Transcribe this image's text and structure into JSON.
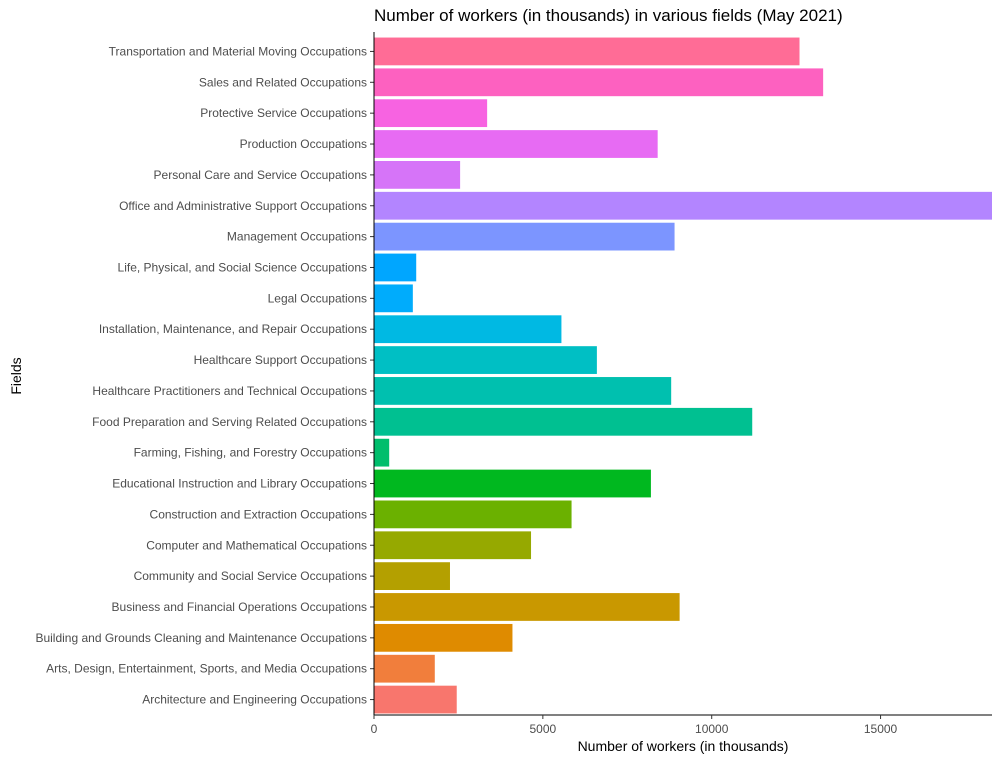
{
  "chart_data": {
    "type": "bar",
    "orientation": "horizontal",
    "title": "Number of workers (in thousands) in various fields (May 2021)",
    "xlabel": "Number of workers (in thousands)",
    "ylabel": "Fields",
    "xlim": [
      0,
      18300
    ],
    "xticks": [
      0,
      5000,
      10000,
      15000
    ],
    "grid": false,
    "legend": "none",
    "categories": [
      "Transportation and Material Moving Occupations",
      "Sales and Related Occupations",
      "Protective Service Occupations",
      "Production Occupations",
      "Personal Care and Service Occupations",
      "Office and Administrative Support Occupations",
      "Management Occupations",
      "Life, Physical, and Social Science Occupations",
      "Legal Occupations",
      "Installation, Maintenance, and Repair Occupations",
      "Healthcare Support Occupations",
      "Healthcare Practitioners and Technical Occupations",
      "Food Preparation and Serving Related Occupations",
      "Farming, Fishing, and Forestry Occupations",
      "Educational Instruction and Library Occupations",
      "Construction and Extraction Occupations",
      "Computer and Mathematical Occupations",
      "Community and Social Service Occupations",
      "Business and Financial Operations Occupations",
      "Building and Grounds Cleaning and Maintenance Occupations",
      "Arts, Design, Entertainment, Sports, and Media Occupations",
      "Architecture and Engineering Occupations"
    ],
    "values": [
      12600,
      13300,
      3350,
      8400,
      2550,
      18300,
      8900,
      1250,
      1150,
      5550,
      6600,
      8800,
      11200,
      450,
      8200,
      5850,
      4650,
      2250,
      9050,
      4100,
      1800,
      2450
    ],
    "colors": [
      "#ff6c96",
      "#fd61c0",
      "#f763e1",
      "#e76bf3",
      "#d674f8",
      "#b385ff",
      "#7c95ff",
      "#00a6ff",
      "#00acfc",
      "#00b9e3",
      "#00bfc4",
      "#00c0af",
      "#00c091",
      "#00be6c",
      "#00b81f",
      "#6bb100",
      "#96a900",
      "#b4a000",
      "#c99800",
      "#df8b00",
      "#f17e3c",
      "#f8766d"
    ]
  }
}
